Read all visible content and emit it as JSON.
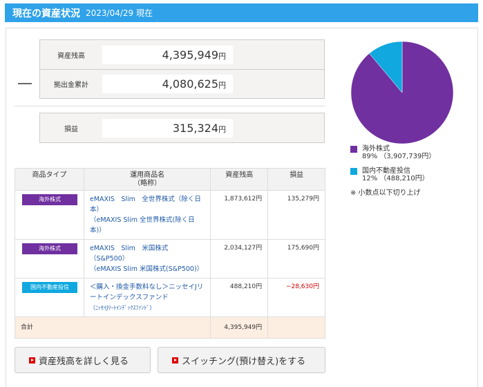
{
  "header": {
    "title": "現在の資産状況",
    "date": "2023/04/29 現在"
  },
  "summary": {
    "rows": [
      {
        "label": "資産残高",
        "value": "4,395,949",
        "unit": "円"
      },
      {
        "label": "拠出金累計",
        "value": "4,080,625",
        "unit": "円"
      }
    ],
    "profit": {
      "label": "損益",
      "value": "315,324",
      "unit": "円"
    }
  },
  "table": {
    "headers": [
      "商品タイプ",
      "運用商品名\n（略称）",
      "資産残高",
      "損益"
    ],
    "rows": [
      {
        "type": "海外株式",
        "type_color": "#7030a0",
        "name": "eMAXIS　Slim　全世界株式（除く日本）",
        "short": "（eMAXIS Slim 全世界株式(除く日本)）",
        "balance": "1,873,612円",
        "profit": "135,279円",
        "negative": false
      },
      {
        "type": "海外株式",
        "type_color": "#7030a0",
        "name": "eMAXIS　Slim　米国株式（S&P500）",
        "short": "（eMAXIS Slim 米国株式(S&P500)）",
        "balance": "2,034,127円",
        "profit": "175,690円",
        "negative": false
      },
      {
        "type": "国内不動産投信",
        "type_color": "#10a8df",
        "name": "＜購入・換金手数料なし＞ニッセイJリートインデックスファンド",
        "short": "（ﾆｯｾｲJﾘｰﾄｲﾝﾃﾞｯｸｽﾌｧﾝﾄﾞ）",
        "balance": "488,210円",
        "profit": "−28,630円",
        "negative": true
      }
    ],
    "total": {
      "label": "合計",
      "balance": "4,395,949円"
    }
  },
  "buttons": {
    "detail": "資産残高を詳しく見る",
    "switching": "スイッチング(預け替え)をする"
  },
  "chart_data": {
    "type": "pie",
    "series": [
      {
        "name": "海外株式",
        "percent_label": "89%",
        "amount": "（3,907,739円）",
        "value": 3907739,
        "color": "#7030a0"
      },
      {
        "name": "国内不動産投信",
        "percent_label": "12%",
        "amount": "（488,210円）",
        "value": 488210,
        "color": "#10a8df"
      }
    ],
    "note": "※ 小数点以下切り上げ"
  }
}
